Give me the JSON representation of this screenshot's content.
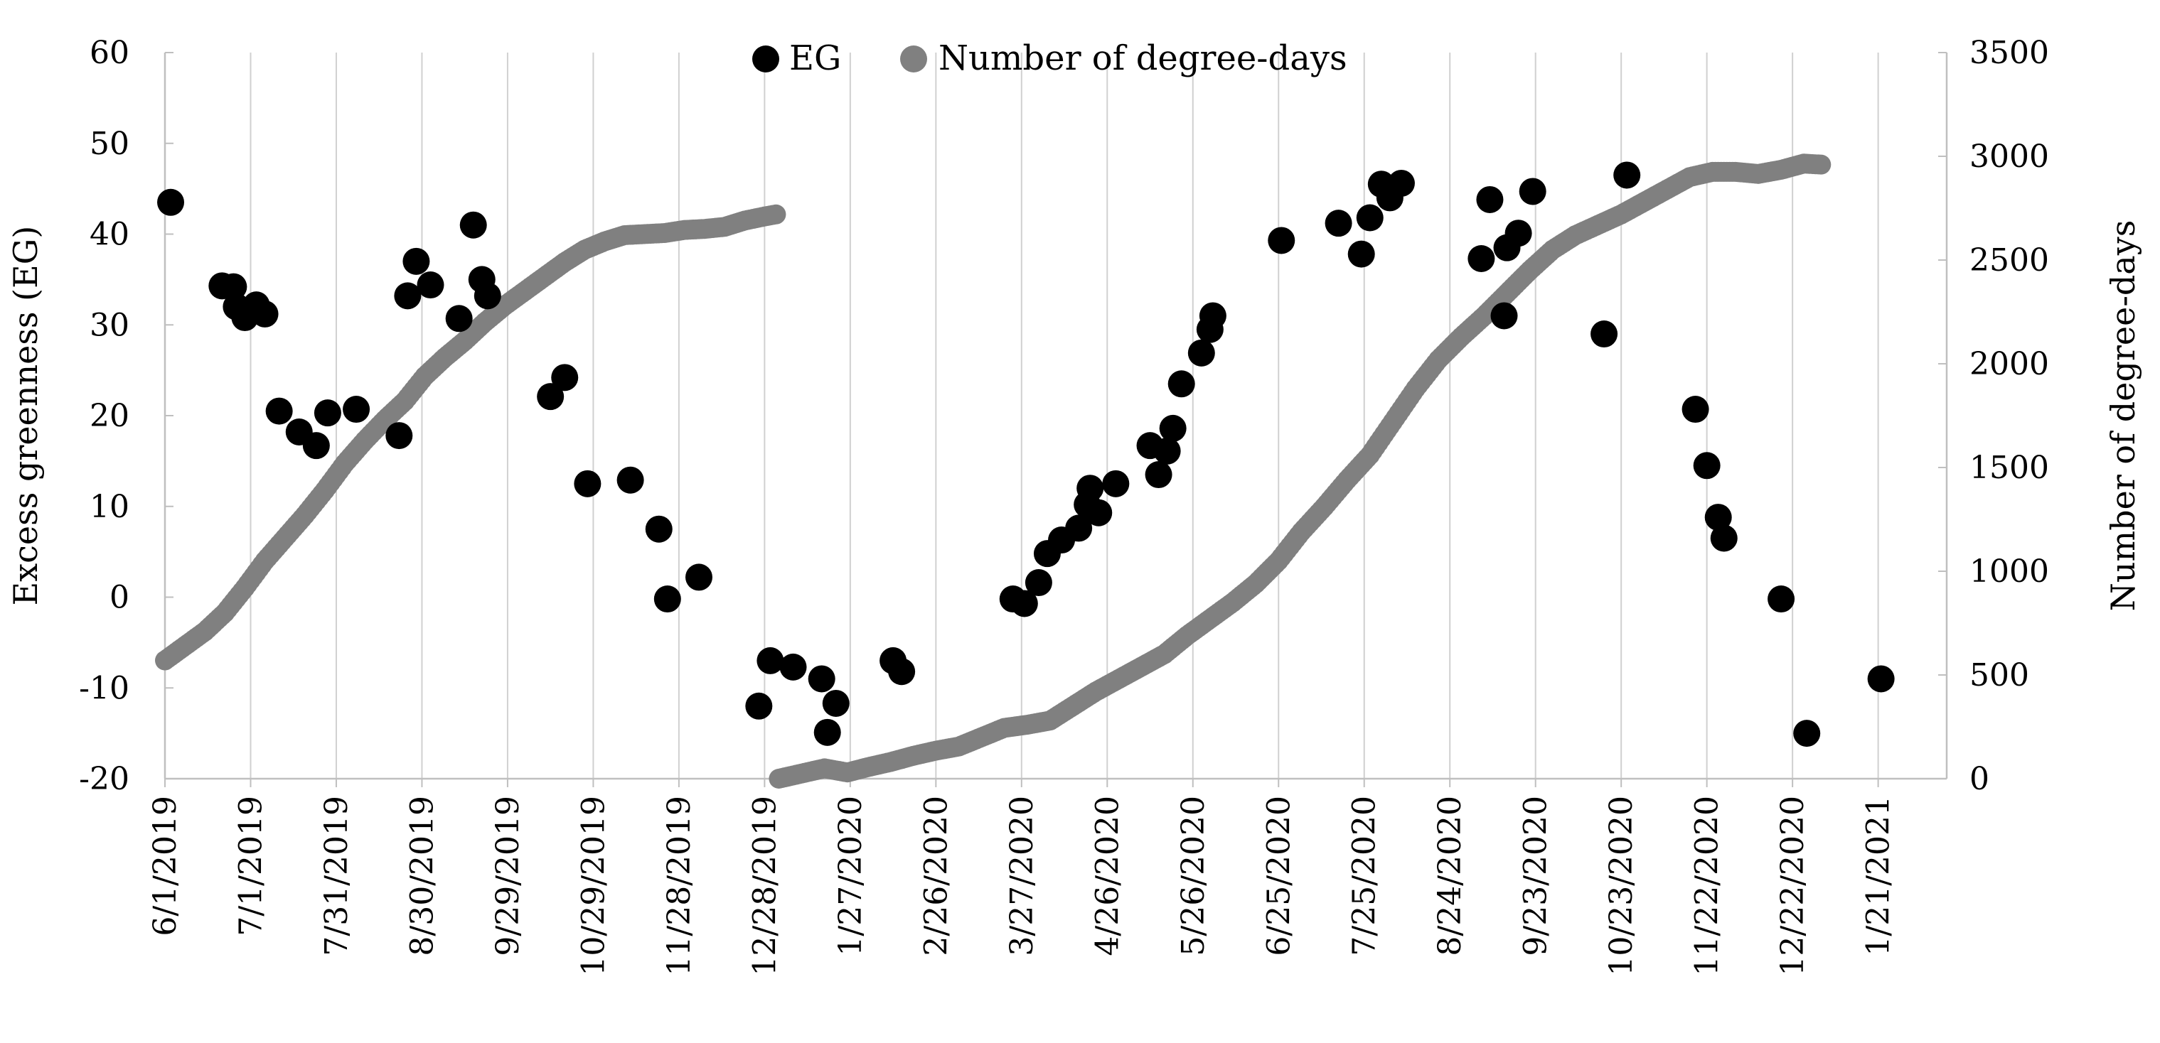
{
  "chart_data": {
    "type": "scatter",
    "title": "",
    "xlabel": "",
    "ylabel": "Excess greenness (EG)",
    "y2label": "Number of degree-days",
    "xlim": [
      "2019-06-01",
      "2021-02-14"
    ],
    "ylim": [
      -20,
      60
    ],
    "y2lim": [
      0,
      3500
    ],
    "yticks": [
      -20,
      -10,
      0,
      10,
      20,
      30,
      40,
      50,
      60
    ],
    "y2ticks": [
      0,
      500,
      1000,
      1500,
      2000,
      2500,
      3000,
      3500
    ],
    "xticks": [
      "2019-06-01",
      "2019-07-01",
      "2019-07-31",
      "2019-08-30",
      "2019-09-29",
      "2019-10-29",
      "2019-11-28",
      "2019-12-28",
      "2020-01-27",
      "2020-02-26",
      "2020-03-27",
      "2020-04-26",
      "2020-05-26",
      "2020-06-25",
      "2020-07-25",
      "2020-08-24",
      "2020-09-23",
      "2020-10-23",
      "2020-11-22",
      "2020-12-22",
      "2021-01-21"
    ],
    "xtick_labels": [
      "6/1/2019",
      "7/1/2019",
      "7/31/2019",
      "8/30/2019",
      "9/29/2019",
      "10/29/2019",
      "11/28/2019",
      "12/28/2019",
      "1/27/2020",
      "2/26/2020",
      "3/27/2020",
      "4/26/2020",
      "5/26/2020",
      "6/25/2020",
      "7/25/2020",
      "8/24/2020",
      "9/23/2020",
      "10/23/2020",
      "11/22/2020",
      "12/22/2020",
      "1/21/2021"
    ],
    "grid": "vertical",
    "legend": "top-center",
    "colors": {
      "eg": "#000000",
      "degree_days": "#808080",
      "grid": "#d0d0d0",
      "axis": "#bfbfbf"
    },
    "series": [
      {
        "name": "EG",
        "axis": "left",
        "points": [
          [
            "2019-06-03",
            43.5
          ],
          [
            "2019-06-21",
            34.3
          ],
          [
            "2019-06-25",
            34.2
          ],
          [
            "2019-06-26",
            32.0
          ],
          [
            "2019-06-29",
            30.8
          ],
          [
            "2019-07-03",
            32.2
          ],
          [
            "2019-07-06",
            31.2
          ],
          [
            "2019-07-11",
            20.5
          ],
          [
            "2019-07-18",
            18.2
          ],
          [
            "2019-07-24",
            16.7
          ],
          [
            "2019-07-28",
            20.3
          ],
          [
            "2019-08-07",
            20.7
          ],
          [
            "2019-08-22",
            17.8
          ],
          [
            "2019-08-25",
            33.2
          ],
          [
            "2019-08-28",
            37.0
          ],
          [
            "2019-09-02",
            34.4
          ],
          [
            "2019-09-12",
            30.7
          ],
          [
            "2019-09-17",
            41.0
          ],
          [
            "2019-09-20",
            35.0
          ],
          [
            "2019-09-22",
            33.2
          ],
          [
            "2019-10-14",
            22.1
          ],
          [
            "2019-10-19",
            24.2
          ],
          [
            "2019-10-27",
            12.5
          ],
          [
            "2019-11-11",
            12.9
          ],
          [
            "2019-11-21",
            7.5
          ],
          [
            "2019-11-24",
            -0.2
          ],
          [
            "2019-12-05",
            2.2
          ],
          [
            "2019-12-26",
            -12.0
          ],
          [
            "2019-12-30",
            -7.0
          ],
          [
            "2020-01-07",
            -7.7
          ],
          [
            "2020-01-17",
            -9.0
          ],
          [
            "2020-01-19",
            -14.9
          ],
          [
            "2020-01-22",
            -11.7
          ],
          [
            "2020-02-11",
            -7.0
          ],
          [
            "2020-02-14",
            -8.2
          ],
          [
            "2020-03-24",
            -0.2
          ],
          [
            "2020-03-28",
            -0.7
          ],
          [
            "2020-04-02",
            1.6
          ],
          [
            "2020-04-05",
            4.8
          ],
          [
            "2020-04-10",
            6.3
          ],
          [
            "2020-04-16",
            7.6
          ],
          [
            "2020-04-19",
            10.2
          ],
          [
            "2020-04-20",
            12.0
          ],
          [
            "2020-04-23",
            9.3
          ],
          [
            "2020-04-29",
            12.5
          ],
          [
            "2020-05-11",
            16.7
          ],
          [
            "2020-05-14",
            13.5
          ],
          [
            "2020-05-17",
            16.1
          ],
          [
            "2020-05-19",
            18.6
          ],
          [
            "2020-05-22",
            23.5
          ],
          [
            "2020-05-29",
            26.9
          ],
          [
            "2020-06-01",
            29.5
          ],
          [
            "2020-06-02",
            31.0
          ],
          [
            "2020-06-26",
            39.3
          ],
          [
            "2020-07-16",
            41.2
          ],
          [
            "2020-07-24",
            37.8
          ],
          [
            "2020-07-27",
            41.8
          ],
          [
            "2020-07-31",
            45.5
          ],
          [
            "2020-08-03",
            44.0
          ],
          [
            "2020-08-07",
            45.6
          ],
          [
            "2020-09-04",
            37.3
          ],
          [
            "2020-09-07",
            43.8
          ],
          [
            "2020-09-12",
            31.0
          ],
          [
            "2020-09-13",
            38.5
          ],
          [
            "2020-09-17",
            40.1
          ],
          [
            "2020-09-22",
            44.7
          ],
          [
            "2020-10-17",
            29.0
          ],
          [
            "2020-10-25",
            46.5
          ],
          [
            "2020-11-18",
            20.7
          ],
          [
            "2020-11-22",
            14.5
          ],
          [
            "2020-11-26",
            8.8
          ],
          [
            "2020-11-28",
            6.5
          ],
          [
            "2020-12-18",
            -0.2
          ],
          [
            "2020-12-27",
            -15.0
          ],
          [
            "2021-01-22",
            -9.0
          ]
        ]
      },
      {
        "name": "Number of degree-days",
        "axis": "right",
        "points": [
          [
            "2019-06-01",
            570
          ],
          [
            "2019-06-08",
            640
          ],
          [
            "2019-06-15",
            710
          ],
          [
            "2019-06-22",
            800
          ],
          [
            "2019-06-29",
            920
          ],
          [
            "2019-07-06",
            1050
          ],
          [
            "2019-07-13",
            1160
          ],
          [
            "2019-07-20",
            1270
          ],
          [
            "2019-07-27",
            1390
          ],
          [
            "2019-08-03",
            1520
          ],
          [
            "2019-08-10",
            1630
          ],
          [
            "2019-08-17",
            1730
          ],
          [
            "2019-08-24",
            1820
          ],
          [
            "2019-08-31",
            1940
          ],
          [
            "2019-09-07",
            2030
          ],
          [
            "2019-09-14",
            2110
          ],
          [
            "2019-09-21",
            2200
          ],
          [
            "2019-09-28",
            2280
          ],
          [
            "2019-10-05",
            2350
          ],
          [
            "2019-10-12",
            2420
          ],
          [
            "2019-10-19",
            2490
          ],
          [
            "2019-10-26",
            2550
          ],
          [
            "2019-11-02",
            2590
          ],
          [
            "2019-11-09",
            2620
          ],
          [
            "2019-11-16",
            2625
          ],
          [
            "2019-11-23",
            2630
          ],
          [
            "2019-11-30",
            2645
          ],
          [
            "2019-12-07",
            2650
          ],
          [
            "2019-12-14",
            2660
          ],
          [
            "2019-12-21",
            2690
          ],
          [
            "2019-12-28",
            2710
          ],
          [
            "2020-01-01",
            2720
          ],
          [
            "2020-01-02",
            0
          ],
          [
            "2020-01-10",
            25
          ],
          [
            "2020-01-18",
            50
          ],
          [
            "2020-01-26",
            30
          ],
          [
            "2020-02-02",
            55
          ],
          [
            "2020-02-10",
            80
          ],
          [
            "2020-02-18",
            110
          ],
          [
            "2020-02-26",
            135
          ],
          [
            "2020-03-05",
            155
          ],
          [
            "2020-03-13",
            200
          ],
          [
            "2020-03-21",
            245
          ],
          [
            "2020-03-29",
            260
          ],
          [
            "2020-04-06",
            280
          ],
          [
            "2020-04-14",
            350
          ],
          [
            "2020-04-22",
            420
          ],
          [
            "2020-04-30",
            480
          ],
          [
            "2020-05-08",
            540
          ],
          [
            "2020-05-16",
            600
          ],
          [
            "2020-05-24",
            690
          ],
          [
            "2020-06-01",
            770
          ],
          [
            "2020-06-09",
            850
          ],
          [
            "2020-06-17",
            940
          ],
          [
            "2020-06-25",
            1050
          ],
          [
            "2020-07-03",
            1190
          ],
          [
            "2020-07-11",
            1310
          ],
          [
            "2020-07-19",
            1440
          ],
          [
            "2020-07-27",
            1560
          ],
          [
            "2020-08-04",
            1720
          ],
          [
            "2020-08-12",
            1880
          ],
          [
            "2020-08-20",
            2020
          ],
          [
            "2020-08-28",
            2130
          ],
          [
            "2020-09-05",
            2230
          ],
          [
            "2020-09-13",
            2340
          ],
          [
            "2020-09-21",
            2450
          ],
          [
            "2020-09-29",
            2550
          ],
          [
            "2020-10-07",
            2620
          ],
          [
            "2020-10-15",
            2670
          ],
          [
            "2020-10-23",
            2720
          ],
          [
            "2020-10-31",
            2780
          ],
          [
            "2020-11-08",
            2840
          ],
          [
            "2020-11-16",
            2900
          ],
          [
            "2020-11-24",
            2925
          ],
          [
            "2020-12-02",
            2925
          ],
          [
            "2020-12-10",
            2915
          ],
          [
            "2020-12-18",
            2935
          ],
          [
            "2020-12-26",
            2965
          ],
          [
            "2021-01-01",
            2960
          ]
        ]
      }
    ]
  }
}
